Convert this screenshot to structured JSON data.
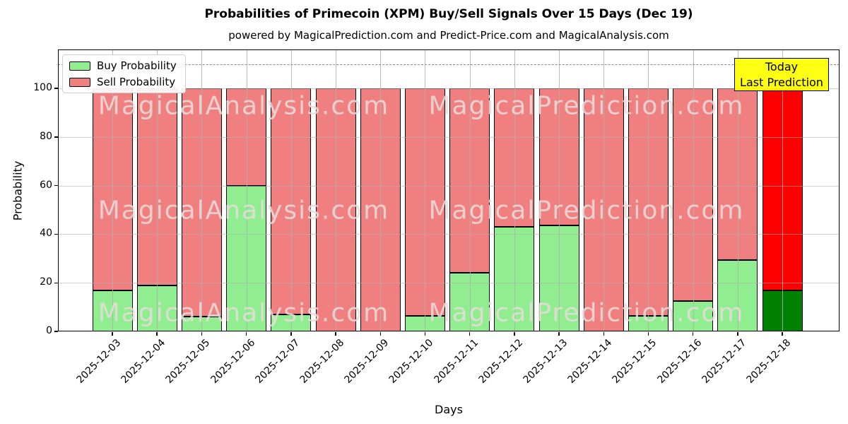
{
  "title": "Probabilities of Primecoin (XPM) Buy/Sell Signals Over 15 Days (Dec 19)",
  "subtitle": "powered by MagicalPrediction.com and Predict-Price.com and MagicalAnalysis.com",
  "legend": {
    "buy": "Buy Probability",
    "sell": "Sell Probability"
  },
  "annotation": {
    "line1": "Today",
    "line2": "Last Prediction"
  },
  "axes": {
    "xlabel": "Days",
    "ylabel": "Probability",
    "yticks": [
      0,
      20,
      40,
      60,
      80,
      100
    ]
  },
  "watermarks": {
    "left": "MagicalAnalysis.com",
    "right": "MagicalPrediction.com"
  },
  "colors": {
    "buy": "#90EE90",
    "sell": "#F08080",
    "today_buy": "#008000",
    "today_sell": "#FF0000",
    "annotation_bg": "#FFFF00",
    "grid": "#B0B0B0",
    "edge": "#000000"
  },
  "chart_data": {
    "type": "bar",
    "stacked": true,
    "title": "Probabilities of Primecoin (XPM) Buy/Sell Signals Over 15 Days (Dec 19)",
    "categories": [
      "2025-12-03",
      "2025-12-04",
      "2025-12-05",
      "2025-12-06",
      "2025-12-07",
      "2025-12-08",
      "2025-12-09",
      "2025-12-10",
      "2025-12-11",
      "2025-12-12",
      "2025-12-13",
      "2025-12-14",
      "2025-12-15",
      "2025-12-16",
      "2025-12-17",
      "2025-12-18"
    ],
    "series": [
      {
        "name": "Buy Probability",
        "color": "#90EE90",
        "values": [
          17,
          19,
          6,
          60,
          7,
          0,
          0,
          6.5,
          24,
          43,
          43.5,
          0,
          6.5,
          12.5,
          29.5,
          17
        ]
      },
      {
        "name": "Sell Probability",
        "color": "#F08080",
        "values": [
          83,
          81,
          94,
          40,
          93,
          100,
          100,
          93.5,
          76,
          57,
          56.5,
          100,
          93.5,
          87.5,
          70.5,
          83
        ]
      }
    ],
    "today_index": 15,
    "today_colors": {
      "buy": "#008000",
      "sell": "#FF0000"
    },
    "xlabel": "Days",
    "ylabel": "Probability",
    "yticks": [
      0,
      20,
      40,
      60,
      80,
      100
    ],
    "ylim": [
      0,
      116
    ],
    "threshold_line": {
      "y": 110,
      "style": "dashed",
      "color": "#808080"
    },
    "legend_position": "upper left",
    "grid": true
  }
}
